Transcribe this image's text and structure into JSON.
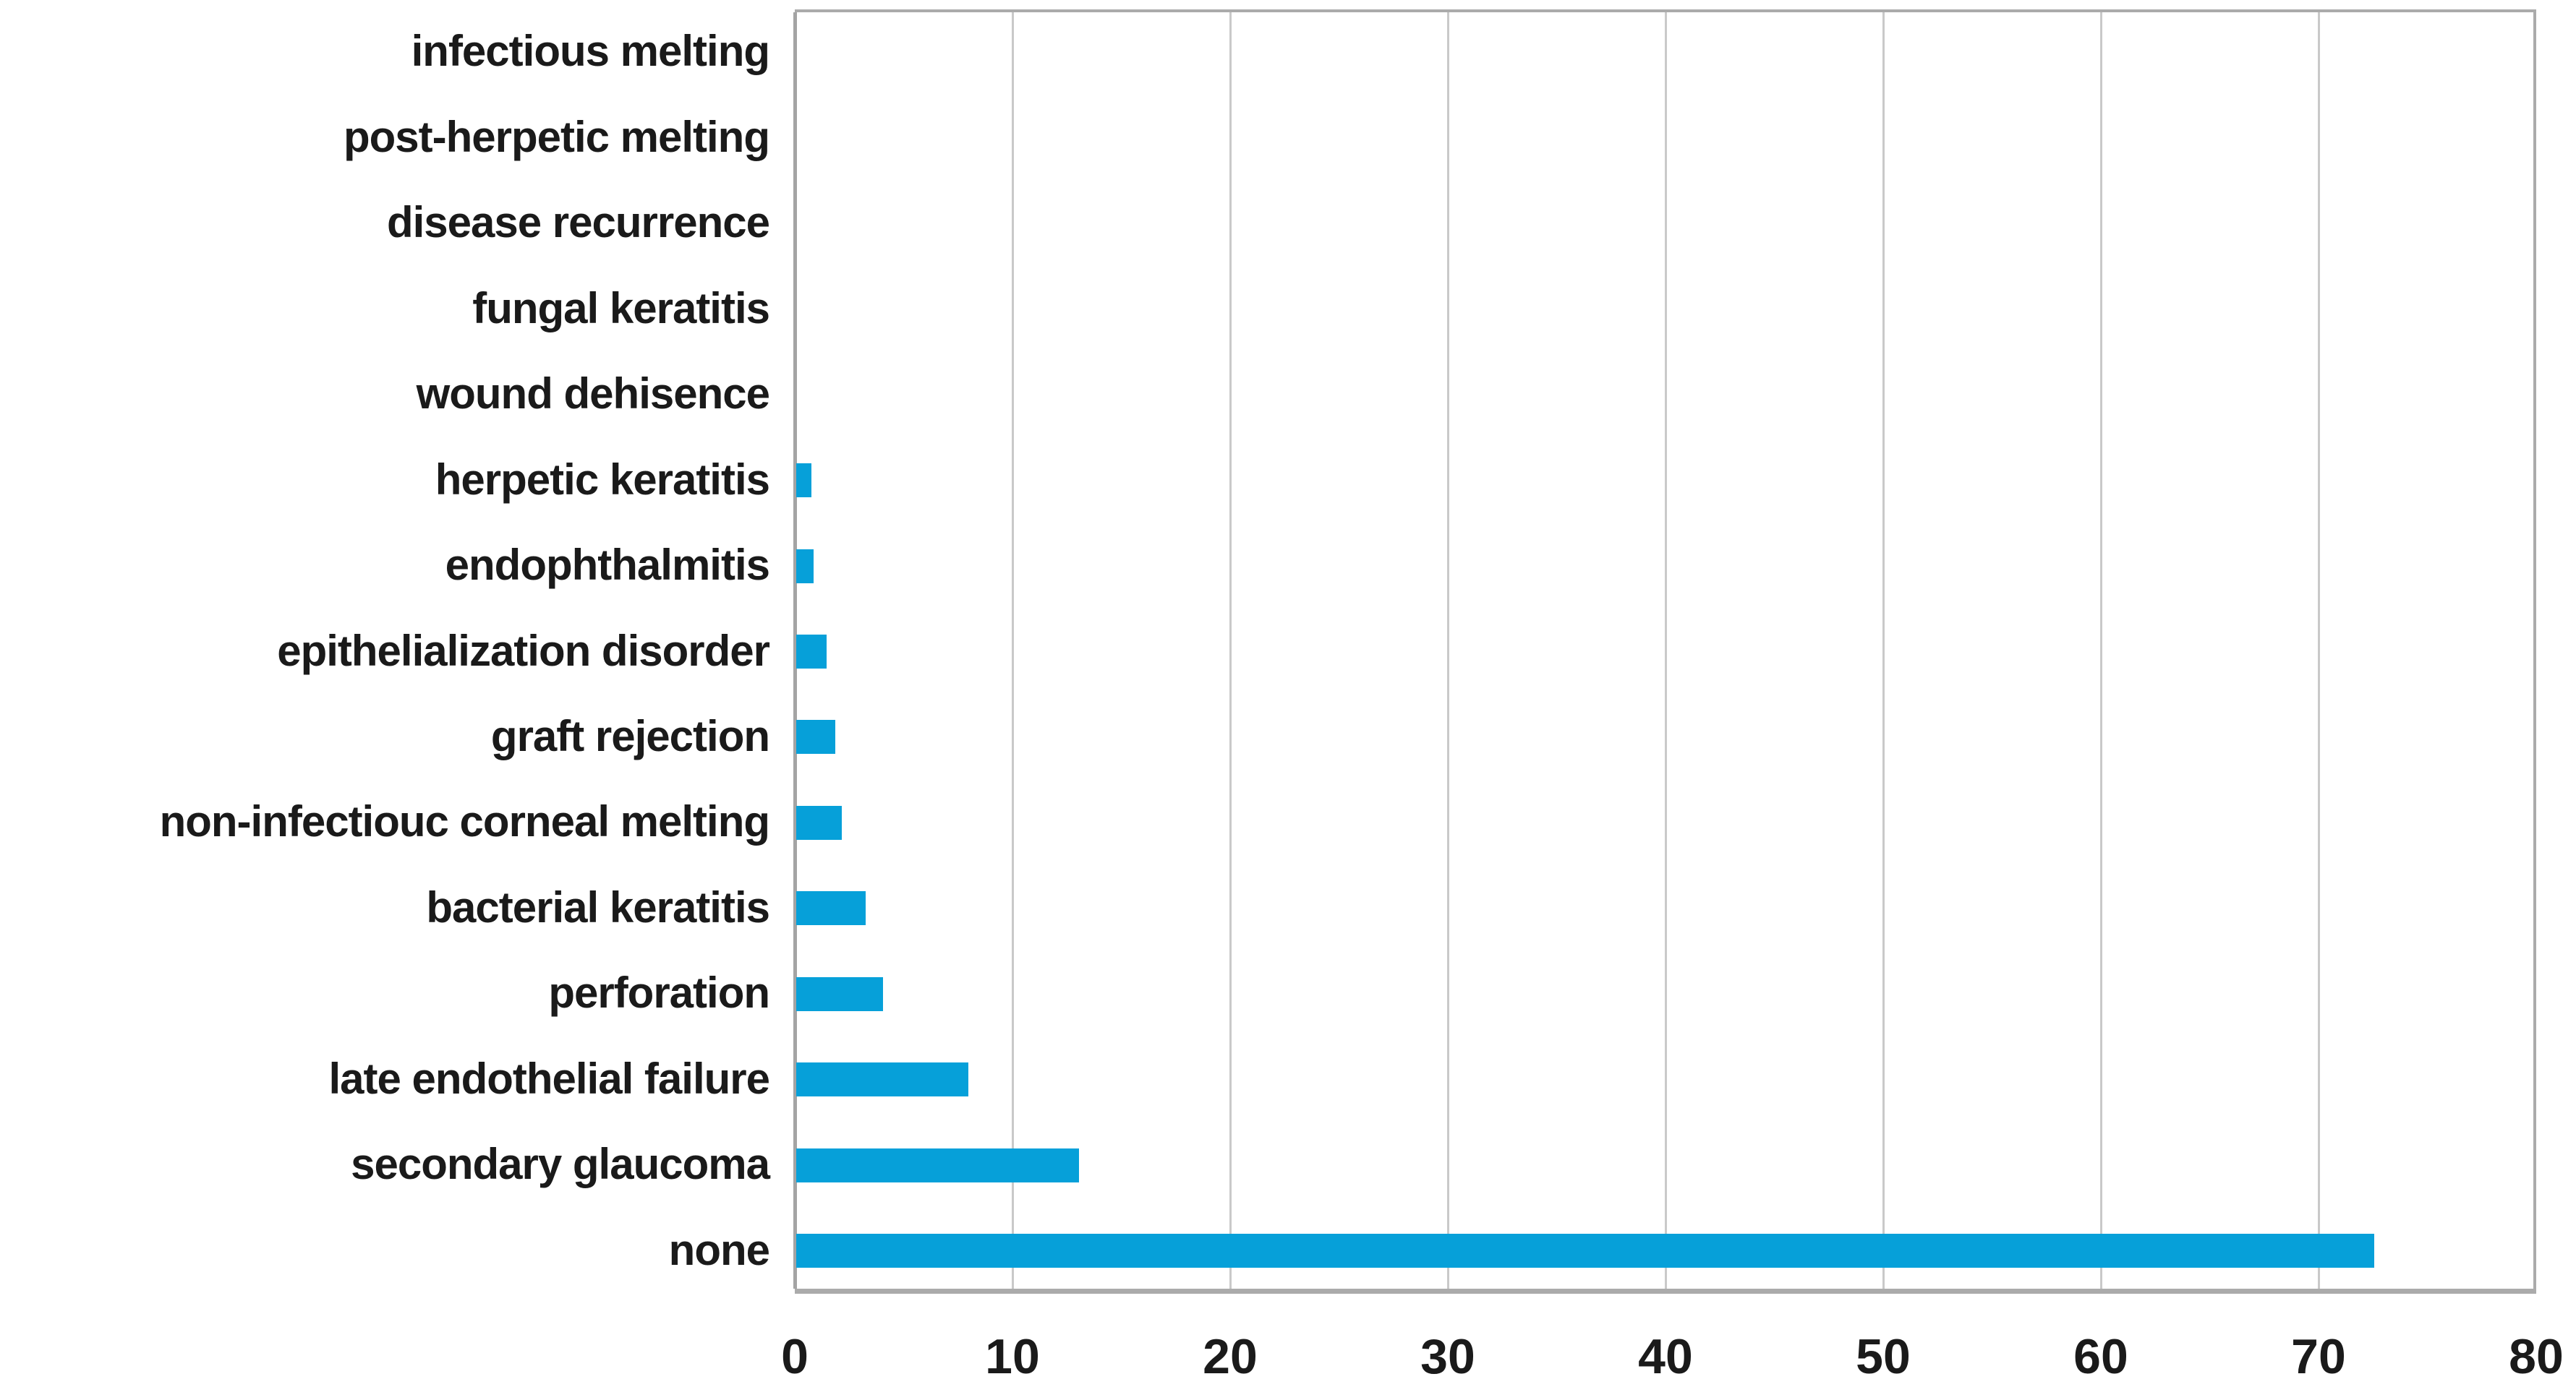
{
  "chart_data": {
    "type": "bar",
    "orientation": "horizontal",
    "title": "",
    "xlabel": "",
    "ylabel": "",
    "categories": [
      "infectious melting",
      "post-herpetic melting",
      "disease recurrence",
      "fungal keratitis",
      "wound dehisence",
      "herpetic keratitis",
      "endophthalmitis",
      "epithelialization disorder",
      "graft rejection",
      "non-infectiouc corneal melting",
      "bacterial keratitis",
      "perforation",
      "late endothelial failure",
      "secondary glaucoma",
      "none"
    ],
    "values": [
      0,
      0,
      0,
      0,
      0,
      0.7,
      0.8,
      1.4,
      1.8,
      2.1,
      3.2,
      4.0,
      7.9,
      13.0,
      72.5
    ],
    "xlim": [
      0,
      80
    ],
    "x_ticks": [
      "0",
      "10",
      "20",
      "30",
      "40",
      "50",
      "60",
      "70",
      "80"
    ],
    "grid": true,
    "legend": false,
    "colors": {
      "bar": "#06a0d9",
      "gridline": "#c9c9c9",
      "plot_border": "#ababab",
      "axis_line": "#a4a4a4",
      "category_text": "#1a1a1a",
      "tick_text": "#1a1a1a",
      "background": "#ffffff"
    }
  }
}
